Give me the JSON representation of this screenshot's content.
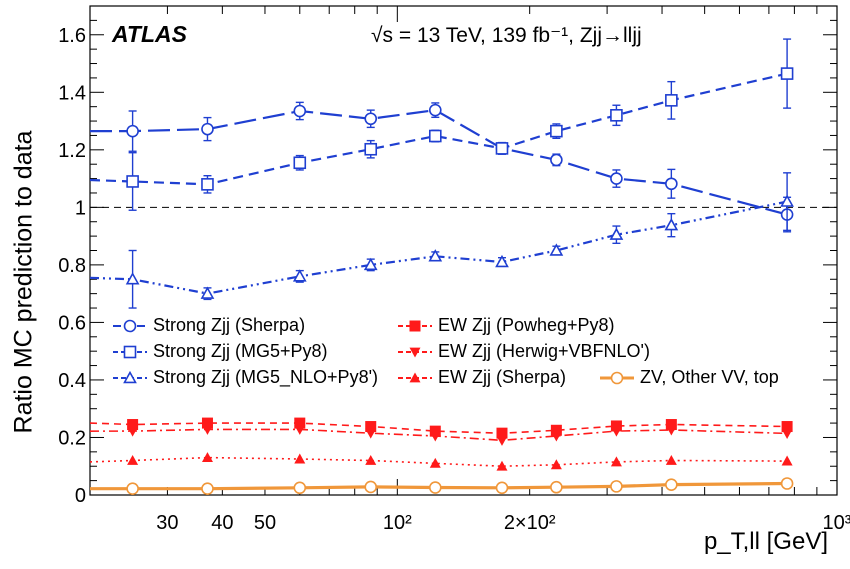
{
  "chart_data": {
    "type": "line",
    "title": "",
    "experiment": "ATLAS",
    "energy_label": "√s = 13 TeV, 139 fb⁻¹, Zjj→lljj",
    "xlabel": "p_T,ll  [GeV]",
    "ylabel": "Ratio MC prediction to data",
    "xscale": "log",
    "xlim": [
      20,
      1000
    ],
    "ylim": [
      0,
      1.7
    ],
    "xticks": [
      {
        "value": 30,
        "label": "30"
      },
      {
        "value": 40,
        "label": "40"
      },
      {
        "value": 50,
        "label": "50"
      },
      {
        "value": 100,
        "label": "10²"
      },
      {
        "value": 200,
        "label": "2×10²"
      },
      {
        "value": 1000,
        "label": "10³"
      }
    ],
    "yticks": [
      0,
      0.2,
      0.4,
      0.6,
      0.8,
      1,
      1.2,
      1.4,
      1.6
    ],
    "ytick_labels": [
      "0",
      "0.2",
      "0.4",
      "0.6",
      "0.8",
      "1",
      "1.2",
      "1.4",
      "1.6"
    ],
    "reference_line": 1.0,
    "legend_position": "middle",
    "x": [
      25,
      37,
      60,
      87,
      122,
      173,
      230,
      315,
      420,
      770
    ],
    "series": [
      {
        "name": "Strong Zjj (Sherpa)",
        "color": "#1f3fd1",
        "dash": "long",
        "marker": "open-circle",
        "values": [
          1.265,
          1.272,
          1.335,
          1.308,
          1.338,
          1.205,
          1.165,
          1.1,
          1.082,
          0.975
        ],
        "errors": [
          0.07,
          0.04,
          0.03,
          0.03,
          0.025,
          0.02,
          0.02,
          0.03,
          0.05,
          0.06
        ],
        "line_start": 1.265
      },
      {
        "name": "Strong Zjj (MG5+Py8)",
        "color": "#1f3fd1",
        "dash": "medium",
        "marker": "open-square",
        "values": [
          1.09,
          1.08,
          1.155,
          1.202,
          1.248,
          1.205,
          1.265,
          1.32,
          1.372,
          1.465
        ],
        "errors": [
          0.1,
          0.03,
          0.025,
          0.03,
          0.02,
          0.02,
          0.025,
          0.035,
          0.065,
          0.12
        ],
        "line_start": 1.095
      },
      {
        "name": "Strong Zjj (MG5_NLO+Py8')",
        "color": "#1f3fd1",
        "dash": "dashdotdot",
        "marker": "open-triangle",
        "values": [
          0.75,
          0.7,
          0.76,
          0.8,
          0.83,
          0.81,
          0.85,
          0.905,
          0.938,
          1.02
        ],
        "errors": [
          0.1,
          0.02,
          0.02,
          0.02,
          0.015,
          0.015,
          0.015,
          0.03,
          0.04,
          0.1
        ],
        "line_start": 0.755
      },
      {
        "name": "EW Zjj (Powheg+Py8)",
        "color": "#ff1a1a",
        "dash": "short",
        "marker": "filled-square",
        "values": [
          0.245,
          0.25,
          0.25,
          0.238,
          0.222,
          0.215,
          0.225,
          0.24,
          0.245,
          0.238
        ],
        "errors": [
          0,
          0,
          0,
          0,
          0,
          0,
          0,
          0,
          0,
          0
        ],
        "line_start": 0.25
      },
      {
        "name": "EW Zjj (Herwig+VBFNLO')",
        "color": "#ff1a1a",
        "dash": "dashdot",
        "marker": "filled-triangle-down",
        "values": [
          0.222,
          0.228,
          0.228,
          0.215,
          0.205,
          0.19,
          0.205,
          0.222,
          0.226,
          0.214
        ],
        "errors": [
          0,
          0,
          0,
          0,
          0,
          0,
          0,
          0,
          0,
          0
        ],
        "line_start": 0.222
      },
      {
        "name": "EW Zjj (Sherpa)",
        "color": "#ff1a1a",
        "dash": "dotted",
        "marker": "filled-triangle-up",
        "values": [
          0.12,
          0.13,
          0.125,
          0.12,
          0.11,
          0.1,
          0.105,
          0.115,
          0.12,
          0.118
        ],
        "errors": [
          0,
          0,
          0,
          0,
          0,
          0,
          0,
          0,
          0,
          0
        ],
        "line_start": 0.115
      },
      {
        "name": "ZV, Other VV, top",
        "color": "#f0973a",
        "dash": "solid",
        "marker": "open-circle",
        "values": [
          0.022,
          0.022,
          0.025,
          0.028,
          0.026,
          0.025,
          0.027,
          0.03,
          0.036,
          0.04
        ],
        "errors": [
          0,
          0,
          0,
          0,
          0,
          0,
          0,
          0,
          0,
          0
        ],
        "line_start": 0.022,
        "thick": true
      }
    ],
    "legend": [
      {
        "label": "Strong Zjj (Sherpa)",
        "series": 0
      },
      {
        "label": "Strong Zjj (MG5+Py8)",
        "series": 1
      },
      {
        "label": "Strong Zjj (MG5_NLO+Py8')",
        "series": 2
      },
      {
        "label": "EW Zjj (Powheg+Py8)",
        "series": 3
      },
      {
        "label": "EW Zjj (Herwig+VBFNLO')",
        "series": 4
      },
      {
        "label": "EW Zjj (Sherpa)",
        "series": 5
      },
      {
        "label": "ZV, Other VV, top",
        "series": 6
      }
    ]
  }
}
